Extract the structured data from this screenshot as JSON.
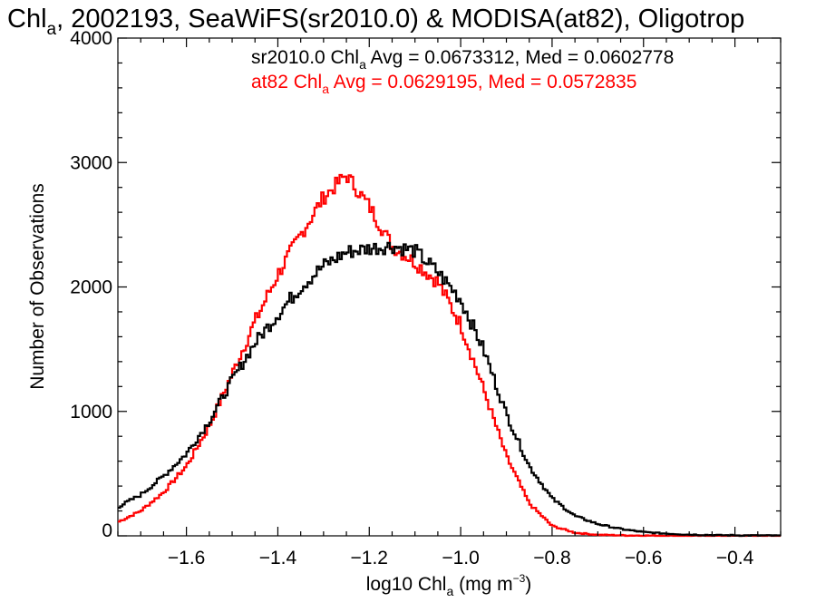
{
  "chart_data": {
    "type": "line",
    "style": "step-histogram",
    "title": {
      "prefix": "Chl",
      "prefix_subscript": "a",
      "rest": ", 2002193, SeaWiFS(sr2010.0) & MODISA(at82), Oligotrop"
    },
    "xlabel": {
      "base": "log10 Chl",
      "subscript": "a",
      "units_pre": " (mg m",
      "units_sup": "−3",
      "units_post": ")"
    },
    "ylabel": "Number of Observations",
    "xlim": [
      -1.75,
      -0.3
    ],
    "ylim": [
      0,
      4000
    ],
    "x_ticks": [
      -1.6,
      -1.4,
      -1.2,
      -1.0,
      -0.8,
      -0.6,
      -0.4
    ],
    "x_tick_labels": [
      "−1.6",
      "−1.4",
      "−1.2",
      "−1.0",
      "−0.8",
      "−0.6",
      "−0.4"
    ],
    "y_ticks": [
      0,
      1000,
      2000,
      3000,
      4000
    ],
    "y_tick_labels": [
      "0",
      "1000",
      "2000",
      "3000",
      "4000"
    ],
    "grid": false,
    "legend": [
      {
        "pre": "sr2010.0 Chl",
        "sub": "a",
        "post": " Avg = 0.0673312, Med = 0.0602778",
        "color": "#000000"
      },
      {
        "pre": "at82 Chl",
        "sub": "a",
        "post": " Avg = 0.0629195, Med = 0.0572835",
        "color": "#ff0000"
      }
    ],
    "legend_placement": "top-right",
    "series": [
      {
        "color": "#000000",
        "x": [
          -1.75,
          -1.7,
          -1.65,
          -1.6,
          -1.55,
          -1.5,
          -1.45,
          -1.4,
          -1.35,
          -1.3,
          -1.25,
          -1.2,
          -1.15,
          -1.1,
          -1.05,
          -1.0,
          -0.95,
          -0.9,
          -0.85,
          -0.8,
          -0.75,
          -0.7,
          -0.65,
          -0.6,
          -0.55,
          -0.5,
          -0.45,
          -0.4,
          -0.35,
          -0.3
        ],
        "y": [
          230,
          330,
          480,
          660,
          920,
          1250,
          1550,
          1780,
          2000,
          2170,
          2280,
          2310,
          2330,
          2290,
          2120,
          1900,
          1500,
          980,
          560,
          300,
          160,
          95,
          55,
          30,
          18,
          10,
          6,
          4,
          3,
          2
        ]
      },
      {
        "color": "#ff0000",
        "x": [
          -1.75,
          -1.7,
          -1.65,
          -1.6,
          -1.55,
          -1.5,
          -1.45,
          -1.4,
          -1.35,
          -1.3,
          -1.25,
          -1.2,
          -1.15,
          -1.1,
          -1.05,
          -1.0,
          -0.95,
          -0.9,
          -0.85,
          -0.8,
          -0.75,
          -0.7,
          -0.65,
          -0.6,
          -0.55,
          -0.5,
          -0.45,
          -0.4,
          -0.35,
          -0.3
        ],
        "y": [
          110,
          200,
          350,
          560,
          880,
          1300,
          1720,
          2100,
          2420,
          2720,
          2900,
          2650,
          2330,
          2200,
          2040,
          1700,
          1180,
          640,
          260,
          80,
          25,
          8,
          4,
          2,
          1,
          0,
          0,
          0,
          0,
          0
        ]
      }
    ]
  }
}
